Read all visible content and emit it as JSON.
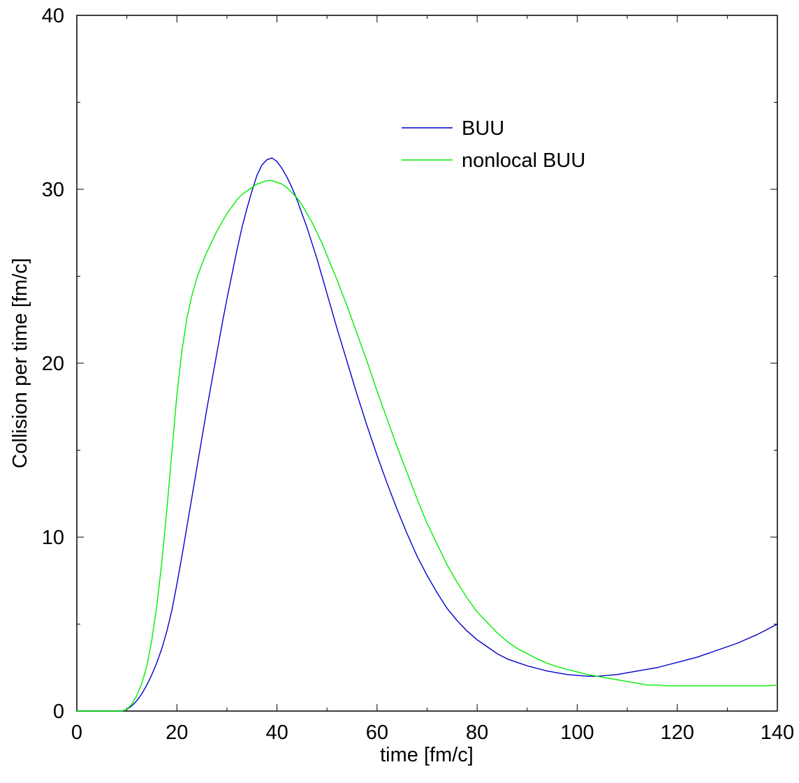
{
  "chart_data": {
    "type": "line",
    "xlabel": "time [fm/c]",
    "ylabel": "Collision per time [fm/c]",
    "xlim": [
      0,
      140
    ],
    "ylim": [
      0,
      40
    ],
    "xticks": [
      0,
      20,
      40,
      60,
      80,
      100,
      120,
      140
    ],
    "yticks": [
      0,
      10,
      20,
      30,
      40
    ],
    "grid": false,
    "legend_position": "top-right",
    "series": [
      {
        "name": "BUU",
        "color": "#0000cc",
        "x": [
          0,
          5,
          9,
          10,
          11,
          12,
          13,
          14,
          15,
          16,
          17,
          18,
          19,
          20,
          21,
          22,
          23,
          24,
          25,
          26,
          27,
          28,
          29,
          30,
          31,
          32,
          33,
          34,
          35,
          36,
          37,
          38,
          39,
          40,
          41,
          42,
          43,
          44,
          45,
          46,
          47,
          48,
          49,
          50,
          52,
          54,
          56,
          58,
          60,
          62,
          64,
          66,
          68,
          70,
          72,
          74,
          76,
          78,
          80,
          82,
          84,
          86,
          88,
          90,
          92,
          94,
          96,
          98,
          100,
          102,
          104,
          106,
          108,
          110,
          112,
          114,
          116,
          118,
          120,
          122,
          124,
          126,
          128,
          130,
          132,
          134,
          136,
          138,
          140
        ],
        "y": [
          0,
          0,
          0,
          0.1,
          0.3,
          0.6,
          1.0,
          1.5,
          2.1,
          2.8,
          3.6,
          4.6,
          5.8,
          7.3,
          8.9,
          10.6,
          12.3,
          14.0,
          15.7,
          17.4,
          19.0,
          20.6,
          22.2,
          23.7,
          25.1,
          26.5,
          27.8,
          28.9,
          29.9,
          30.8,
          31.4,
          31.7,
          31.8,
          31.6,
          31.2,
          30.7,
          30.1,
          29.4,
          28.6,
          27.8,
          26.9,
          26.0,
          25.0,
          24.0,
          22.0,
          20.1,
          18.2,
          16.4,
          14.7,
          13.1,
          11.6,
          10.2,
          8.9,
          7.8,
          6.8,
          5.9,
          5.2,
          4.6,
          4.1,
          3.7,
          3.3,
          3.0,
          2.8,
          2.6,
          2.45,
          2.3,
          2.2,
          2.1,
          2.05,
          2.0,
          2.0,
          2.05,
          2.1,
          2.2,
          2.3,
          2.4,
          2.5,
          2.65,
          2.8,
          2.95,
          3.1,
          3.3,
          3.5,
          3.7,
          3.9,
          4.15,
          4.4,
          4.7,
          5.0
        ]
      },
      {
        "name": "nonlocal BUU",
        "color": "#00ee00",
        "x": [
          0,
          5,
          9,
          10,
          11,
          12,
          13,
          14,
          15,
          16,
          17,
          18,
          19,
          20,
          21,
          22,
          23,
          24,
          25,
          26,
          27,
          28,
          29,
          30,
          31,
          32,
          33,
          34,
          35,
          36,
          37,
          38,
          39,
          40,
          41,
          42,
          43,
          44,
          45,
          46,
          47,
          48,
          49,
          50,
          52,
          54,
          56,
          58,
          60,
          62,
          64,
          66,
          68,
          70,
          72,
          74,
          76,
          78,
          80,
          82,
          84,
          86,
          88,
          90,
          92,
          94,
          96,
          98,
          100,
          102,
          104,
          106,
          108,
          110,
          112,
          114,
          116,
          118,
          120,
          122,
          124,
          126,
          128,
          130,
          132,
          134,
          136,
          138,
          140
        ],
        "y": [
          0,
          0,
          0,
          0.1,
          0.4,
          0.9,
          1.6,
          2.6,
          4.1,
          6.1,
          8.6,
          11.6,
          14.9,
          18.2,
          20.7,
          22.6,
          23.9,
          24.9,
          25.7,
          26.4,
          27.0,
          27.6,
          28.1,
          28.6,
          29.0,
          29.4,
          29.7,
          29.9,
          30.1,
          30.3,
          30.4,
          30.5,
          30.5,
          30.4,
          30.3,
          30.1,
          29.8,
          29.5,
          29.1,
          28.6,
          28.1,
          27.5,
          26.9,
          26.2,
          24.8,
          23.3,
          21.7,
          20.1,
          18.4,
          16.8,
          15.2,
          13.7,
          12.2,
          10.8,
          9.6,
          8.4,
          7.4,
          6.5,
          5.7,
          5.1,
          4.5,
          4.0,
          3.6,
          3.3,
          3.0,
          2.75,
          2.55,
          2.4,
          2.25,
          2.1,
          2.0,
          1.9,
          1.8,
          1.7,
          1.6,
          1.5,
          1.5,
          1.45,
          1.45,
          1.45,
          1.45,
          1.45,
          1.45,
          1.45,
          1.45,
          1.45,
          1.45,
          1.45,
          1.5
        ]
      }
    ]
  }
}
